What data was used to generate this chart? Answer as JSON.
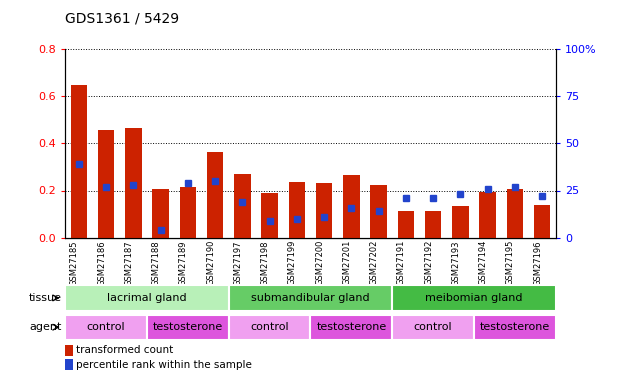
{
  "title": "GDS1361 / 5429",
  "samples": [
    "GSM27185",
    "GSM27186",
    "GSM27187",
    "GSM27188",
    "GSM27189",
    "GSM27190",
    "GSM27197",
    "GSM27198",
    "GSM27199",
    "GSM27200",
    "GSM27201",
    "GSM27202",
    "GSM27191",
    "GSM27192",
    "GSM27193",
    "GSM27194",
    "GSM27195",
    "GSM27196"
  ],
  "red_values": [
    0.645,
    0.455,
    0.465,
    0.205,
    0.215,
    0.365,
    0.27,
    0.19,
    0.235,
    0.232,
    0.265,
    0.225,
    0.115,
    0.115,
    0.135,
    0.195,
    0.205,
    0.14
  ],
  "blue_pct": [
    39,
    27,
    28,
    4,
    29,
    30,
    19,
    9,
    10,
    11,
    16,
    14,
    21,
    21,
    23,
    26,
    27,
    22
  ],
  "tissue_groups": [
    {
      "label": "lacrimal gland",
      "start": 0,
      "end": 6,
      "color": "#b8f0b8"
    },
    {
      "label": "submandibular gland",
      "start": 6,
      "end": 12,
      "color": "#66cc66"
    },
    {
      "label": "meibomian gland",
      "start": 12,
      "end": 18,
      "color": "#44bb44"
    }
  ],
  "agent_groups": [
    {
      "label": "control",
      "start": 0,
      "end": 3,
      "color": "#f0a0f0"
    },
    {
      "label": "testosterone",
      "start": 3,
      "end": 6,
      "color": "#dd55dd"
    },
    {
      "label": "control",
      "start": 6,
      "end": 9,
      "color": "#f0a0f0"
    },
    {
      "label": "testosterone",
      "start": 9,
      "end": 12,
      "color": "#dd55dd"
    },
    {
      "label": "control",
      "start": 12,
      "end": 15,
      "color": "#f0a0f0"
    },
    {
      "label": "testosterone",
      "start": 15,
      "end": 18,
      "color": "#dd55dd"
    }
  ],
  "red_color": "#cc2200",
  "blue_color": "#2244cc",
  "ylim_left": [
    0,
    0.8
  ],
  "ylim_right": [
    0,
    100
  ],
  "yticks_left": [
    0,
    0.2,
    0.4,
    0.6,
    0.8
  ],
  "yticks_right": [
    0,
    25,
    50,
    75,
    100
  ],
  "bar_width": 0.6,
  "blue_marker_size": 5,
  "tissue_label": "tissue",
  "agent_label": "agent",
  "legend_red": "transformed count",
  "legend_blue": "percentile rank within the sample",
  "xtick_bg": "#d8d8d8",
  "title_fontsize": 10,
  "ytick_fontsize": 8,
  "xtick_fontsize": 6,
  "annot_fontsize": 8
}
